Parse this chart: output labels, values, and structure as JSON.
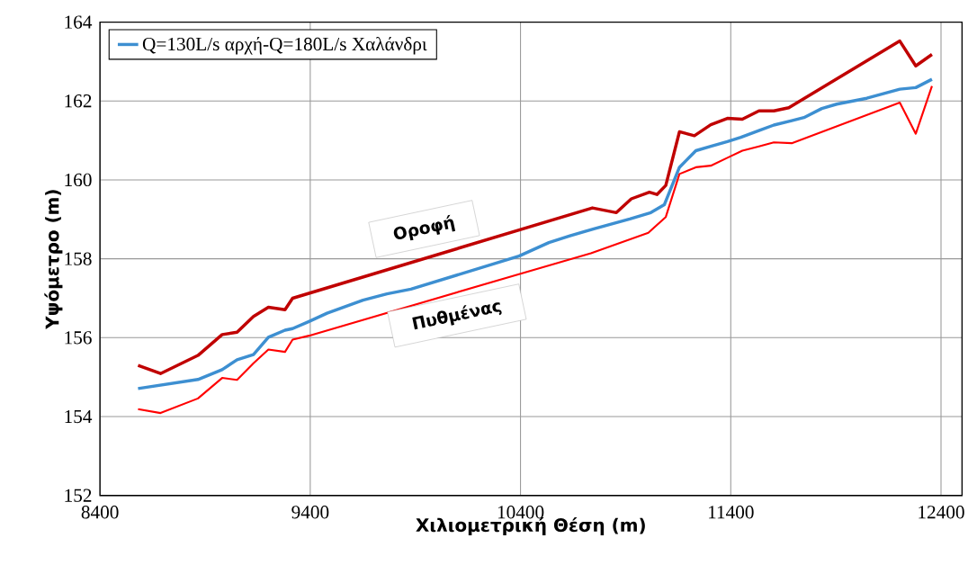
{
  "chart_data": {
    "type": "line",
    "xlabel": "Χιλιομετρική Θέση (m)",
    "ylabel": "Υψόμετρο (m)",
    "xlim": [
      8400,
      12500
    ],
    "ylim": [
      152,
      164
    ],
    "xticks": [
      8400,
      9400,
      10400,
      11400,
      12400
    ],
    "yticks": [
      152,
      154,
      156,
      158,
      160,
      162,
      164
    ],
    "grid": true,
    "legend": "top left",
    "marker": "none",
    "line_style": "solid",
    "series": [
      {
        "color": "#c00000",
        "x": [
          8581,
          8688,
          8866,
          8981,
          9052,
          9130,
          9201,
          9280,
          9316,
          10742,
          10856,
          10927,
          11013,
          11049,
          11091,
          11156,
          11227,
          11305,
          11384,
          11455,
          11534,
          11605,
          11676,
          12204,
          12280,
          12357
        ],
        "values": [
          155.3,
          155.09,
          155.55,
          156.08,
          156.14,
          156.54,
          156.77,
          156.71,
          157.0,
          159.29,
          159.17,
          159.52,
          159.69,
          159.63,
          159.86,
          161.22,
          161.12,
          161.4,
          161.56,
          161.54,
          161.75,
          161.75,
          161.83,
          163.52,
          162.89,
          163.18
        ]
      },
      {
        "name": "Q=130L/s αρχή-Q=180L/s Χαλάνδρι",
        "color": "#3d8fd1",
        "x": [
          8581,
          8866,
          8981,
          9052,
          9130,
          9201,
          9280,
          9316,
          9394,
          9480,
          9651,
          9765,
          9879,
          10393,
          10535,
          10635,
          10749,
          10920,
          11020,
          11084,
          11156,
          11234,
          11305,
          11384,
          11448,
          11534,
          11605,
          11690,
          11748,
          11833,
          11904,
          12047,
          12204,
          12280,
          12357
        ],
        "values": [
          154.71,
          154.94,
          155.19,
          155.44,
          155.57,
          156.01,
          156.19,
          156.23,
          156.41,
          156.62,
          156.95,
          157.11,
          157.23,
          158.07,
          158.41,
          158.58,
          158.76,
          159.01,
          159.17,
          159.37,
          160.32,
          160.74,
          160.85,
          160.97,
          161.08,
          161.25,
          161.39,
          161.5,
          161.58,
          161.81,
          161.92,
          162.07,
          162.3,
          162.34,
          162.55
        ]
      },
      {
        "color": "#ff0000",
        "x": [
          8581,
          8688,
          8866,
          8981,
          9052,
          9130,
          9201,
          9280,
          9316,
          9394,
          10393,
          10735,
          11008,
          11091,
          11156,
          11234,
          11305,
          11384,
          11455,
          11534,
          11605,
          11690,
          12204,
          12280,
          12357
        ],
        "values": [
          154.19,
          154.09,
          154.46,
          154.98,
          154.93,
          155.35,
          155.7,
          155.64,
          155.95,
          156.05,
          157.61,
          158.14,
          158.66,
          159.06,
          160.15,
          160.32,
          160.36,
          160.56,
          160.74,
          160.85,
          160.95,
          160.93,
          161.96,
          161.17,
          162.38
        ]
      }
    ],
    "annotations": [
      "Οροφή",
      "Πυθμένας"
    ]
  }
}
